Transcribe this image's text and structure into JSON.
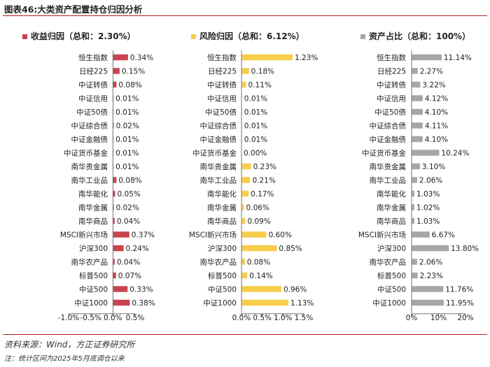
{
  "header": {
    "title": "图表46:大类资产配置持仓归因分析"
  },
  "categories": [
    "恒生指数",
    "日经225",
    "中证转债",
    "中证信用",
    "中证50债",
    "中证综合债",
    "中证金融债",
    "中证货币基金",
    "南华贵金属",
    "南华工业品",
    "南华能化",
    "南华金属",
    "南华商品",
    "MSCI新兴市场",
    "沪深300",
    "南华农产品",
    "标普500",
    "中证500",
    "中证1000"
  ],
  "chart_data": [
    {
      "type": "bar",
      "orientation": "horizontal",
      "title": "收益归因（总和：2.30%）",
      "color": "#c8454f",
      "categories": [
        "恒生指数",
        "日经225",
        "中证转债",
        "中证信用",
        "中证50债",
        "中证综合债",
        "中证金融债",
        "中证货币基金",
        "南华贵金属",
        "南华工业品",
        "南华能化",
        "南华金属",
        "南华商品",
        "MSCI新兴市场",
        "沪深300",
        "南华农产品",
        "标普500",
        "中证500",
        "中证1000"
      ],
      "values": [
        0.34,
        0.15,
        0.08,
        0.01,
        0.01,
        0.02,
        0.01,
        0.01,
        0.01,
        0.08,
        0.05,
        0.02,
        0.04,
        0.37,
        0.24,
        0.04,
        0.07,
        0.33,
        0.38
      ],
      "value_labels": [
        "0.34%",
        "0.15%",
        "0.08%",
        "0.01%",
        "0.01%",
        "0.02%",
        "0.01%",
        "0.01%",
        "0.01%",
        "0.08%",
        "0.05%",
        "0.02%",
        "0.04%",
        "0.37%",
        "0.24%",
        "0.04%",
        "0.07%",
        "0.33%",
        "0.38%"
      ],
      "xlim": [
        -1.0,
        0.5
      ],
      "xticks": [
        -1.0,
        -0.5,
        0.0,
        0.5
      ],
      "xtick_labels": [
        "-1.0%",
        "-0.5%",
        "0.0%",
        "0.5%"
      ],
      "unit": "%"
    },
    {
      "type": "bar",
      "orientation": "horizontal",
      "title": "风险归因（总和：6.12%）",
      "color": "#f7cd4c",
      "categories": [
        "恒生指数",
        "日经225",
        "中证转债",
        "中证信用",
        "中证50债",
        "中证综合债",
        "中证金融债",
        "中证货币基金",
        "南华贵金属",
        "南华工业品",
        "南华能化",
        "南华金属",
        "南华商品",
        "MSCI新兴市场",
        "沪深300",
        "南华农产品",
        "标普500",
        "中证500",
        "中证1000"
      ],
      "values": [
        1.23,
        0.18,
        0.11,
        0.01,
        0.01,
        0.01,
        0.01,
        0.0,
        0.23,
        0.21,
        0.17,
        0.06,
        0.09,
        0.6,
        0.85,
        0.08,
        0.14,
        0.96,
        1.13
      ],
      "value_labels": [
        "1.23%",
        "0.18%",
        "0.11%",
        "0.01%",
        "0.01%",
        "0.01%",
        "0.01%",
        "0.00%",
        "0.23%",
        "0.21%",
        "0.17%",
        "0.06%",
        "0.09%",
        "0.60%",
        "0.85%",
        "0.08%",
        "0.14%",
        "0.96%",
        "1.13%"
      ],
      "xlim": [
        0.0,
        1.5
      ],
      "xticks": [
        0.0,
        0.5,
        1.0,
        1.5
      ],
      "xtick_labels": [
        "0.0%",
        "0.5%",
        "1.0%",
        "1.5%"
      ],
      "unit": "%"
    },
    {
      "type": "bar",
      "orientation": "horizontal",
      "title": "资产占比（总和：100%）",
      "color": "#a6a6a6",
      "categories": [
        "恒生指数",
        "日经225",
        "中证转债",
        "中证信用",
        "中证50债",
        "中证综合债",
        "中证金融债",
        "中证货币基金",
        "南华贵金属",
        "南华工业品",
        "南华能化",
        "南华金属",
        "南华商品",
        "MSCI新兴市场",
        "沪深300",
        "南华农产品",
        "标普500",
        "中证500",
        "中证1000"
      ],
      "values": [
        11.14,
        2.27,
        3.22,
        4.12,
        4.1,
        4.11,
        4.1,
        10.24,
        3.1,
        2.06,
        1.03,
        1.02,
        1.03,
        6.67,
        13.8,
        2.06,
        2.23,
        11.76,
        11.95
      ],
      "value_labels": [
        "11.14%",
        "2.27%",
        "3.22%",
        "4.12%",
        "4.10%",
        "4.11%",
        "4.10%",
        "10.24%",
        "3.10%",
        "2.06%",
        "1.03%",
        "1.02%",
        "1.03%",
        "6.67%",
        "13.80%",
        "2.06%",
        "2.23%",
        "11.76%",
        "11.95%"
      ],
      "xlim": [
        0,
        20
      ],
      "xticks": [
        0,
        10,
        20
      ],
      "xtick_labels": [
        "0%",
        "10%",
        "20%"
      ],
      "unit": "%"
    }
  ],
  "footer": {
    "source": "资料来源：Wind，方正证券研究所",
    "note": "注：统计区间为2025年5月底调仓以来"
  }
}
